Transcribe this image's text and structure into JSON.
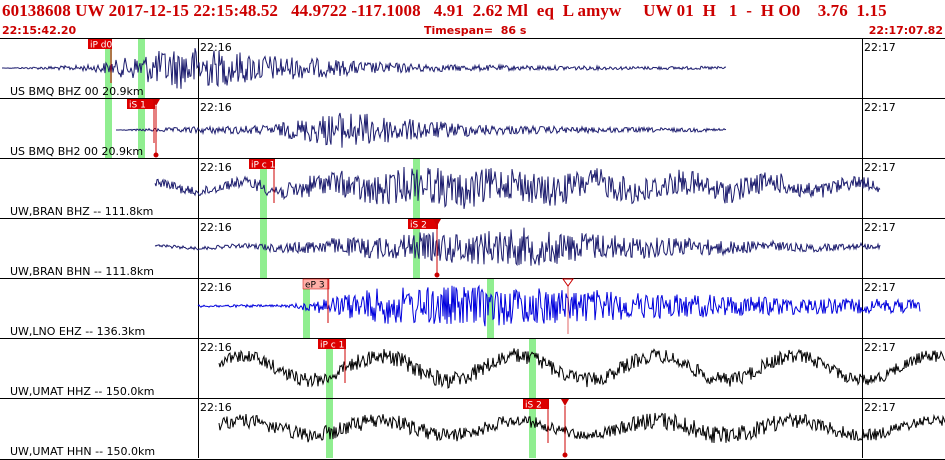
{
  "header": {
    "event_line": "60138608 UW 2017-12-15 22:15:48.52   44.9722 -117.1008   4.91  2.62 Ml  eq  L amyw     UW 01  H   1  -  H O0    3.76  1.15",
    "start_time": "22:15:42.20",
    "timespan_label": "Timespan=  86 s",
    "end_time": "22:17:07.82"
  },
  "colors": {
    "header_text": "#cc0000",
    "pick_box": "#dd0000",
    "pick_box_emergent": "#ffb0a8",
    "theoretical_marker": "#90ee90",
    "trace_navy": "#1c1c6e",
    "trace_blue": "#0000dd",
    "trace_black": "#000000"
  },
  "time_ticks": {
    "left": "22:16",
    "right": "22:17"
  },
  "channels": [
    {
      "label": "US BMQ BHZ 00 20.9km",
      "color": "navy",
      "pick": "iP d0"
    },
    {
      "label": "US BMQ BH2 00 20.9km",
      "color": "navy",
      "pick": "iS 1"
    },
    {
      "label": "UW,BRAN BHZ -- 111.8km",
      "color": "navy",
      "pick": "iP c 1"
    },
    {
      "label": "UW,BRAN BHN -- 111.8km",
      "color": "navy",
      "pick": "iS 2"
    },
    {
      "label": "UW,LNO EHZ -- 136.3km",
      "color": "blue",
      "pick": "eP 3"
    },
    {
      "label": "UW,UMAT HHZ -- 150.0km",
      "color": "black",
      "pick": "iP c 1"
    },
    {
      "label": "UW,UMAT HHN -- 150.0km",
      "color": "black",
      "pick": "iS 2"
    }
  ]
}
